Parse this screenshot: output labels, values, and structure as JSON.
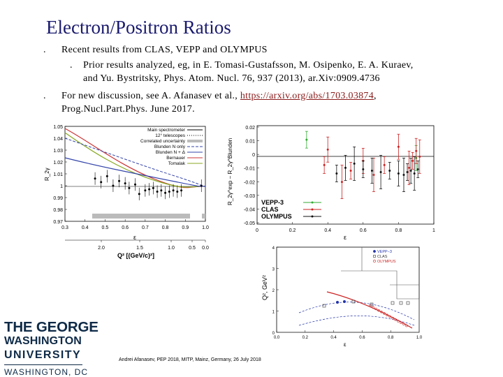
{
  "slide": {
    "title": "Electron/Positron Ratios",
    "bullets": [
      {
        "text": "Recent results from CLAS, VEPP and OLYMPUS"
      },
      {
        "sub": "Prior results analyzed, eg, in E. Tomasi-Gustafsson, M. Osipenko, E. A. Kuraev,",
        "sub2": "and Yu. Bystritsky, Phys. Atom. Nucl. 76, 937 (2013), ar.Xiv:0909.4736"
      },
      {
        "text": "For new discussion, see A. Afanasev et al., ",
        "link": "https://arxiv.org/abs/1703.03874",
        "after": ",",
        "line2": "Prog.Nucl.Part.Phys. June 2017."
      }
    ],
    "bullet_marker": ".",
    "footer": "Andrei Afanasev, PEP 2018, MITP, Mainz, Germany, 26 July  2018"
  },
  "logo": {
    "line1": "THE GEORGE",
    "line2": "WASHINGTON",
    "line3": "UNIVERSITY",
    "line4": "WASHINGTON, DC",
    "color": "#0e2a47"
  },
  "chart_data": [
    {
      "type": "scatter",
      "xlim": [
        0.3,
        1.0
      ],
      "ylim": [
        0.97,
        1.05
      ],
      "x_ticks": [
        "0.3",
        "0.4",
        "0.5",
        "0.6",
        "0.7",
        "0.8",
        "0.9",
        "1.0"
      ],
      "y_ticks": [
        "1.05",
        "1.04",
        "1.03",
        "1.02",
        "1.01",
        "1",
        "0.99",
        "0.98",
        "0.97"
      ],
      "xlabel": "ε",
      "ylabel": "R_2γ",
      "x2_ticks": [
        "2.0",
        "1.5",
        "1.0",
        "0.5",
        "0.0"
      ],
      "x2label": "Q² [(GeV/c)²]",
      "legend_position": "top-right",
      "legend": [
        "Main spectrometer",
        "12° telescopes",
        "Correlated uncertainty",
        "Blunden N only",
        "Blunden N + Δ",
        "Bernauer",
        "Tomalak"
      ],
      "colors": {
        "blunden_n": "#3344aa",
        "blunden_nd": "#3344aa",
        "bernauer": "#cc3333",
        "tomalak": "#88aa22",
        "uncert": "#bbbbbb"
      },
      "points": [
        {
          "x": 0.45,
          "y": 1.006
        },
        {
          "x": 0.48,
          "y": 1.003
        },
        {
          "x": 0.51,
          "y": 1.008
        },
        {
          "x": 0.54,
          "y": 1.0
        },
        {
          "x": 0.57,
          "y": 1.004
        },
        {
          "x": 0.6,
          "y": 1.002
        },
        {
          "x": 0.62,
          "y": 0.998
        },
        {
          "x": 0.65,
          "y": 1.001
        },
        {
          "x": 0.67,
          "y": 0.993
        },
        {
          "x": 0.7,
          "y": 0.996
        },
        {
          "x": 0.72,
          "y": 0.997
        },
        {
          "x": 0.74,
          "y": 0.998
        },
        {
          "x": 0.76,
          "y": 0.995
        },
        {
          "x": 0.78,
          "y": 0.996
        },
        {
          "x": 0.8,
          "y": 0.994
        },
        {
          "x": 0.82,
          "y": 0.995
        },
        {
          "x": 0.84,
          "y": 0.996
        },
        {
          "x": 0.86,
          "y": 0.995
        },
        {
          "x": 0.88,
          "y": 0.996
        },
        {
          "x": 0.98,
          "y": 1.0
        }
      ]
    },
    {
      "type": "scatter",
      "xlim": [
        0,
        1
      ],
      "ylim": [
        -0.05,
        0.02
      ],
      "y_ticks": [
        "0.02",
        "0.01",
        "0",
        "-0.01",
        "-0.02",
        "-0.03",
        "-0.04",
        "-0.05"
      ],
      "x_ticks": [
        "0",
        "0.2",
        "0.4",
        "0.6",
        "0.8",
        "1"
      ],
      "xlabel": "ε",
      "ylabel": "R_2γ^exp − R_2γ^Blunden",
      "legend_position": "bottom-left",
      "series": [
        {
          "name": "VEPP-3",
          "color": "#33aa33",
          "points": [
            {
              "x": 0.28,
              "y": 0.01
            },
            {
              "x": 0.9,
              "y": -0.003
            }
          ]
        },
        {
          "name": "CLAS",
          "color": "#cc2222",
          "points": [
            {
              "x": 0.38,
              "y": -0.008
            },
            {
              "x": 0.4,
              "y": 0.003
            },
            {
              "x": 0.48,
              "y": -0.02
            },
            {
              "x": 0.53,
              "y": -0.012
            },
            {
              "x": 0.6,
              "y": -0.005
            },
            {
              "x": 0.66,
              "y": -0.015
            },
            {
              "x": 0.72,
              "y": -0.008
            },
            {
              "x": 0.8,
              "y": 0.005
            },
            {
              "x": 0.86,
              "y": -0.01
            },
            {
              "x": 0.88,
              "y": -0.005
            },
            {
              "x": 0.9,
              "y": 0.002
            },
            {
              "x": 0.92,
              "y": -0.002
            }
          ]
        },
        {
          "name": "OLYMPUS",
          "color": "#111111",
          "points": [
            {
              "x": 0.45,
              "y": -0.014
            },
            {
              "x": 0.5,
              "y": -0.01
            },
            {
              "x": 0.55,
              "y": -0.007
            },
            {
              "x": 0.6,
              "y": -0.011
            },
            {
              "x": 0.65,
              "y": -0.012
            },
            {
              "x": 0.7,
              "y": -0.013
            },
            {
              "x": 0.75,
              "y": -0.012
            },
            {
              "x": 0.8,
              "y": -0.014
            },
            {
              "x": 0.83,
              "y": -0.015
            },
            {
              "x": 0.85,
              "y": -0.013
            },
            {
              "x": 0.87,
              "y": -0.012
            },
            {
              "x": 0.89,
              "y": -0.014
            },
            {
              "x": 0.91,
              "y": -0.011
            }
          ]
        }
      ]
    },
    {
      "type": "scatter",
      "xlim": [
        0,
        1
      ],
      "ylim": [
        0,
        4
      ],
      "x_ticks": [
        "0.0",
        "0.2",
        "0.4",
        "0.6",
        "0.8",
        "1.0"
      ],
      "y_ticks": [
        "0",
        "1",
        "2",
        "3",
        "4"
      ],
      "xlabel": "ε",
      "ylabel": "Q², GeV²",
      "legend_position": "top-right",
      "legend": [
        "VEPP−3",
        "CLAS",
        "OLYMPUS"
      ],
      "colors": {
        "vepp": "#2233aa",
        "clas": "#333333",
        "olympus": "#cc2222"
      }
    }
  ]
}
